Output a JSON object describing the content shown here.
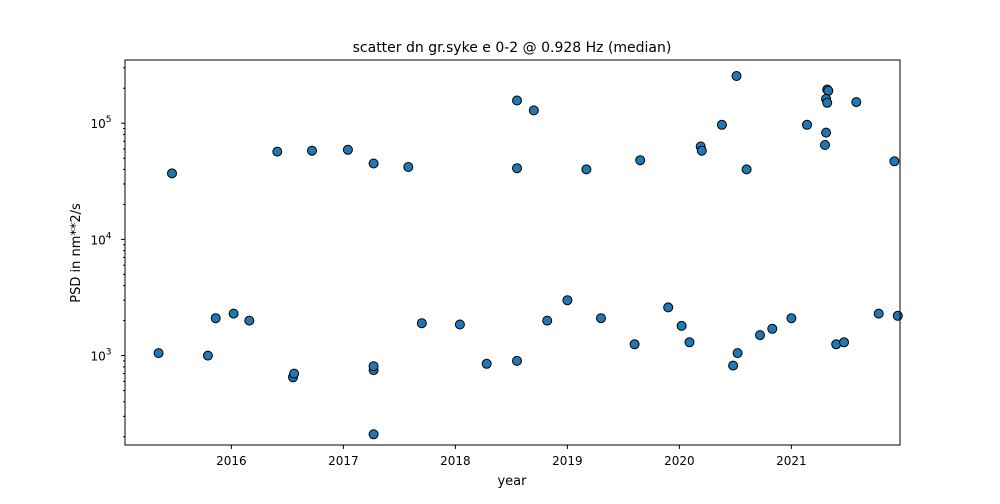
{
  "chart_data": {
    "type": "scatter",
    "title": "scatter dn gr.syke e 0-2 @ 0.928 Hz (median)",
    "xlabel": "year",
    "ylabel": "PSD in nm**2/s",
    "yscale": "log",
    "xlim": [
      2015.05,
      2021.97
    ],
    "ylim": [
      170,
      350000
    ],
    "x_ticks": [
      "2016",
      "2017",
      "2018",
      "2019",
      "2020",
      "2021"
    ],
    "y_ticks": [
      {
        "base": "10",
        "exp": "3",
        "value": 1000
      },
      {
        "base": "10",
        "exp": "4",
        "value": 10000
      },
      {
        "base": "10",
        "exp": "5",
        "value": 100000
      }
    ],
    "grid": false,
    "marker_color": "#1f77b4",
    "marker_edge": "#000000",
    "series": [
      {
        "values": [
          [
            2015.47,
            37000
          ],
          [
            2015.79,
            1000
          ],
          [
            2015.35,
            1050
          ],
          [
            2016.41,
            57000
          ],
          [
            2016.55,
            650
          ],
          [
            2016.56,
            700
          ],
          [
            2016.72,
            58000
          ],
          [
            2017.04,
            59000
          ],
          [
            2017.27,
            45000
          ],
          [
            2017.27,
            750
          ],
          [
            2017.27,
            810
          ],
          [
            2017.27,
            210
          ],
          [
            2017.58,
            42000
          ],
          [
            2018.28,
            850
          ],
          [
            2018.55,
            157000
          ],
          [
            2018.55,
            900
          ],
          [
            2018.7,
            129000
          ],
          [
            2018.55,
            41000
          ],
          [
            2019.17,
            40000
          ],
          [
            2019.65,
            48000
          ],
          [
            2019.6,
            1250
          ],
          [
            2020.09,
            1300
          ],
          [
            2020.19,
            63000
          ],
          [
            2020.2,
            58000
          ],
          [
            2020.38,
            97000
          ],
          [
            2020.51,
            255000
          ],
          [
            2020.48,
            820
          ],
          [
            2020.52,
            1050
          ],
          [
            2020.6,
            40000
          ],
          [
            2021.14,
            97000
          ],
          [
            2021.32,
            195000
          ],
          [
            2021.33,
            190000
          ],
          [
            2021.31,
            162000
          ],
          [
            2021.32,
            150000
          ],
          [
            2021.31,
            83000
          ],
          [
            2021.3,
            65000
          ],
          [
            2021.58,
            152000
          ],
          [
            2021.4,
            1250
          ],
          [
            2021.92,
            47000
          ],
          [
            2021.47,
            1300
          ],
          [
            2015.86,
            2100
          ],
          [
            2016.02,
            2300
          ],
          [
            2016.16,
            2000
          ],
          [
            2017.7,
            1900
          ],
          [
            2018.04,
            1850
          ],
          [
            2018.82,
            2000
          ],
          [
            2019.0,
            3000
          ],
          [
            2019.3,
            2100
          ],
          [
            2019.9,
            2600
          ],
          [
            2020.02,
            1800
          ],
          [
            2020.72,
            1500
          ],
          [
            2020.83,
            1700
          ],
          [
            2021.0,
            2100
          ],
          [
            2021.78,
            2300
          ],
          [
            2021.95,
            2200
          ]
        ]
      }
    ]
  }
}
